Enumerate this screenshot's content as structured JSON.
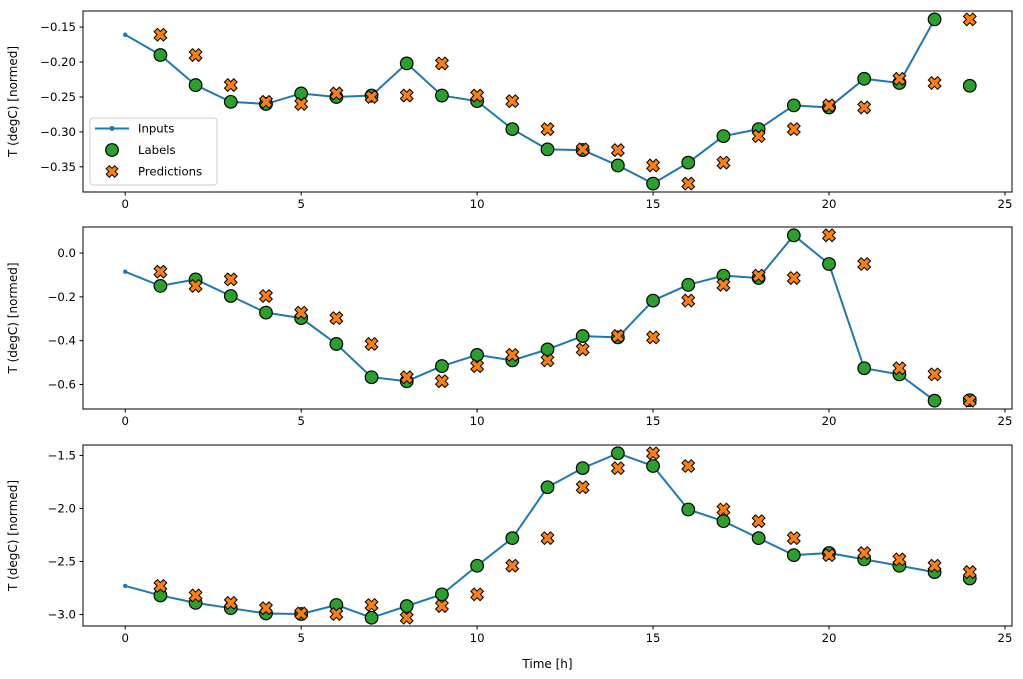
{
  "figure": {
    "background": "#ffffff",
    "axis_color": "#000000",
    "xlabel": "Time [h]",
    "ylabel": "T (degC) [normed]",
    "legend": {
      "border_color": "#cccccc",
      "background": "#ffffff",
      "items": [
        {
          "label": "Inputs",
          "marker": "line-dot",
          "color": "#1f77b4",
          "edge": "#000000"
        },
        {
          "label": "Labels",
          "marker": "circle",
          "color": "#2ca02c",
          "edge": "#000000"
        },
        {
          "label": "Predictions",
          "marker": "x",
          "color": "#ff7f0e",
          "edge": "#000000"
        }
      ]
    }
  },
  "chart_data": [
    {
      "type": "line",
      "title": "",
      "ylabel": "T (degC) [normed]",
      "xlabel": "",
      "grid": false,
      "legend_position": "lower left inside",
      "show_legend": true,
      "xlim": [
        -1.2,
        25.2
      ],
      "ylim": [
        -0.386,
        -0.127
      ],
      "x_ticks": {
        "values": [
          0,
          5,
          10,
          15,
          20,
          25
        ],
        "labels": [
          "0",
          "5",
          "10",
          "15",
          "20",
          "25"
        ]
      },
      "y_ticks": {
        "values": [
          -0.15,
          -0.2,
          -0.25,
          -0.3,
          -0.35
        ],
        "labels": [
          "−0.15",
          "−0.20",
          "−0.25",
          "−0.30",
          "−0.35"
        ]
      },
      "series": [
        {
          "name": "Inputs",
          "kind": "line-dot",
          "color": "#1f77b4",
          "x": [
            0,
            1,
            2,
            3,
            4,
            5,
            6,
            7,
            8,
            9,
            10,
            11,
            12,
            13,
            14,
            15,
            16,
            17,
            18,
            19,
            20,
            21,
            22,
            23
          ],
          "y": [
            -0.161,
            -0.19,
            -0.233,
            -0.257,
            -0.26,
            -0.245,
            -0.25,
            -0.248,
            -0.202,
            -0.248,
            -0.256,
            -0.296,
            -0.325,
            -0.326,
            -0.348,
            -0.374,
            -0.344,
            -0.306,
            -0.296,
            -0.262,
            -0.265,
            -0.224,
            -0.23,
            -0.139
          ]
        },
        {
          "name": "Labels",
          "kind": "circle",
          "color": "#2ca02c",
          "edge": "#000000",
          "x": [
            1,
            2,
            3,
            4,
            5,
            6,
            7,
            8,
            9,
            10,
            11,
            12,
            13,
            14,
            15,
            16,
            17,
            18,
            19,
            20,
            21,
            22,
            23,
            24
          ],
          "y": [
            -0.19,
            -0.233,
            -0.257,
            -0.26,
            -0.245,
            -0.25,
            -0.248,
            -0.202,
            -0.248,
            -0.256,
            -0.296,
            -0.325,
            -0.326,
            -0.348,
            -0.374,
            -0.344,
            -0.306,
            -0.296,
            -0.262,
            -0.265,
            -0.224,
            -0.23,
            -0.139,
            -0.234
          ]
        },
        {
          "name": "Predictions",
          "kind": "x-marker",
          "color": "#ff7f0e",
          "edge": "#000000",
          "x": [
            1,
            2,
            3,
            4,
            5,
            6,
            7,
            8,
            9,
            10,
            11,
            12,
            13,
            14,
            15,
            16,
            17,
            18,
            19,
            20,
            21,
            22,
            23,
            24
          ],
          "y": [
            -0.161,
            -0.19,
            -0.233,
            -0.257,
            -0.26,
            -0.245,
            -0.25,
            -0.248,
            -0.202,
            -0.248,
            -0.256,
            -0.296,
            -0.325,
            -0.326,
            -0.348,
            -0.374,
            -0.344,
            -0.306,
            -0.296,
            -0.262,
            -0.265,
            -0.224,
            -0.23,
            -0.139
          ]
        }
      ]
    },
    {
      "type": "line",
      "title": "",
      "ylabel": "T (degC) [normed]",
      "xlabel": "",
      "grid": false,
      "show_legend": false,
      "xlim": [
        -1.2,
        25.2
      ],
      "ylim": [
        -0.712,
        0.119
      ],
      "x_ticks": {
        "values": [
          0,
          5,
          10,
          15,
          20,
          25
        ],
        "labels": [
          "0",
          "5",
          "10",
          "15",
          "20",
          "25"
        ]
      },
      "y_ticks": {
        "values": [
          0.0,
          -0.2,
          -0.4,
          -0.6
        ],
        "labels": [
          "0.0",
          "−0.2",
          "−0.4",
          "−0.6"
        ]
      },
      "series": [
        {
          "name": "Inputs",
          "kind": "line-dot",
          "color": "#1f77b4",
          "x": [
            0,
            1,
            2,
            3,
            4,
            5,
            6,
            7,
            8,
            9,
            10,
            11,
            12,
            13,
            14,
            15,
            16,
            17,
            18,
            19,
            20,
            21,
            22,
            23
          ],
          "y": [
            -0.085,
            -0.15,
            -0.12,
            -0.196,
            -0.272,
            -0.297,
            -0.415,
            -0.567,
            -0.585,
            -0.516,
            -0.465,
            -0.49,
            -0.44,
            -0.379,
            -0.385,
            -0.217,
            -0.145,
            -0.103,
            -0.114,
            0.081,
            -0.05,
            -0.526,
            -0.554,
            -0.674
          ]
        },
        {
          "name": "Labels",
          "kind": "circle",
          "color": "#2ca02c",
          "edge": "#000000",
          "x": [
            1,
            2,
            3,
            4,
            5,
            6,
            7,
            8,
            9,
            10,
            11,
            12,
            13,
            14,
            15,
            16,
            17,
            18,
            19,
            20,
            21,
            22,
            23,
            24
          ],
          "y": [
            -0.15,
            -0.12,
            -0.196,
            -0.272,
            -0.297,
            -0.415,
            -0.567,
            -0.585,
            -0.516,
            -0.465,
            -0.49,
            -0.44,
            -0.379,
            -0.385,
            -0.217,
            -0.145,
            -0.103,
            -0.114,
            0.081,
            -0.05,
            -0.526,
            -0.554,
            -0.674,
            -0.672
          ]
        },
        {
          "name": "Predictions",
          "kind": "x-marker",
          "color": "#ff7f0e",
          "edge": "#000000",
          "x": [
            1,
            2,
            3,
            4,
            5,
            6,
            7,
            8,
            9,
            10,
            11,
            12,
            13,
            14,
            15,
            16,
            17,
            18,
            19,
            20,
            21,
            22,
            23,
            24
          ],
          "y": [
            -0.085,
            -0.15,
            -0.12,
            -0.196,
            -0.272,
            -0.297,
            -0.415,
            -0.567,
            -0.585,
            -0.516,
            -0.465,
            -0.49,
            -0.44,
            -0.379,
            -0.385,
            -0.217,
            -0.145,
            -0.103,
            -0.114,
            0.081,
            -0.05,
            -0.526,
            -0.554,
            -0.674
          ]
        }
      ]
    },
    {
      "type": "line",
      "title": "",
      "ylabel": "T (degC) [normed]",
      "xlabel": "Time [h]",
      "grid": false,
      "show_legend": false,
      "xlim": [
        -1.2,
        25.2
      ],
      "ylim": [
        -3.108,
        -1.402
      ],
      "x_ticks": {
        "values": [
          0,
          5,
          10,
          15,
          20,
          25
        ],
        "labels": [
          "0",
          "5",
          "10",
          "15",
          "20",
          "25"
        ]
      },
      "y_ticks": {
        "values": [
          -1.5,
          -2.0,
          -2.5,
          -3.0
        ],
        "labels": [
          "−1.5",
          "−2.0",
          "−2.5",
          "−3.0"
        ]
      },
      "series": [
        {
          "name": "Inputs",
          "kind": "line-dot",
          "color": "#1f77b4",
          "x": [
            0,
            1,
            2,
            3,
            4,
            5,
            6,
            7,
            8,
            9,
            10,
            11,
            12,
            13,
            14,
            15,
            16,
            17,
            18,
            19,
            20,
            21,
            22,
            23
          ],
          "y": [
            -2.73,
            -2.82,
            -2.89,
            -2.94,
            -2.99,
            -2.995,
            -2.91,
            -3.03,
            -2.92,
            -2.81,
            -2.54,
            -2.28,
            -1.8,
            -1.62,
            -1.48,
            -1.6,
            -2.01,
            -2.12,
            -2.28,
            -2.44,
            -2.42,
            -2.48,
            -2.54,
            -2.6
          ]
        },
        {
          "name": "Labels",
          "kind": "circle",
          "color": "#2ca02c",
          "edge": "#000000",
          "x": [
            1,
            2,
            3,
            4,
            5,
            6,
            7,
            8,
            9,
            10,
            11,
            12,
            13,
            14,
            15,
            16,
            17,
            18,
            19,
            20,
            21,
            22,
            23,
            24
          ],
          "y": [
            -2.82,
            -2.89,
            -2.94,
            -2.99,
            -2.995,
            -2.91,
            -3.03,
            -2.92,
            -2.81,
            -2.54,
            -2.28,
            -1.8,
            -1.62,
            -1.48,
            -1.6,
            -2.01,
            -2.12,
            -2.28,
            -2.44,
            -2.42,
            -2.48,
            -2.54,
            -2.6,
            -2.66
          ]
        },
        {
          "name": "Predictions",
          "kind": "x-marker",
          "color": "#ff7f0e",
          "edge": "#000000",
          "x": [
            1,
            2,
            3,
            4,
            5,
            6,
            7,
            8,
            9,
            10,
            11,
            12,
            13,
            14,
            15,
            16,
            17,
            18,
            19,
            20,
            21,
            22,
            23,
            24
          ],
          "y": [
            -2.73,
            -2.82,
            -2.89,
            -2.94,
            -2.99,
            -2.995,
            -2.91,
            -3.03,
            -2.92,
            -2.81,
            -2.54,
            -2.28,
            -1.8,
            -1.62,
            -1.48,
            -1.6,
            -2.01,
            -2.12,
            -2.28,
            -2.44,
            -2.42,
            -2.48,
            -2.54,
            -2.6
          ]
        }
      ]
    }
  ]
}
